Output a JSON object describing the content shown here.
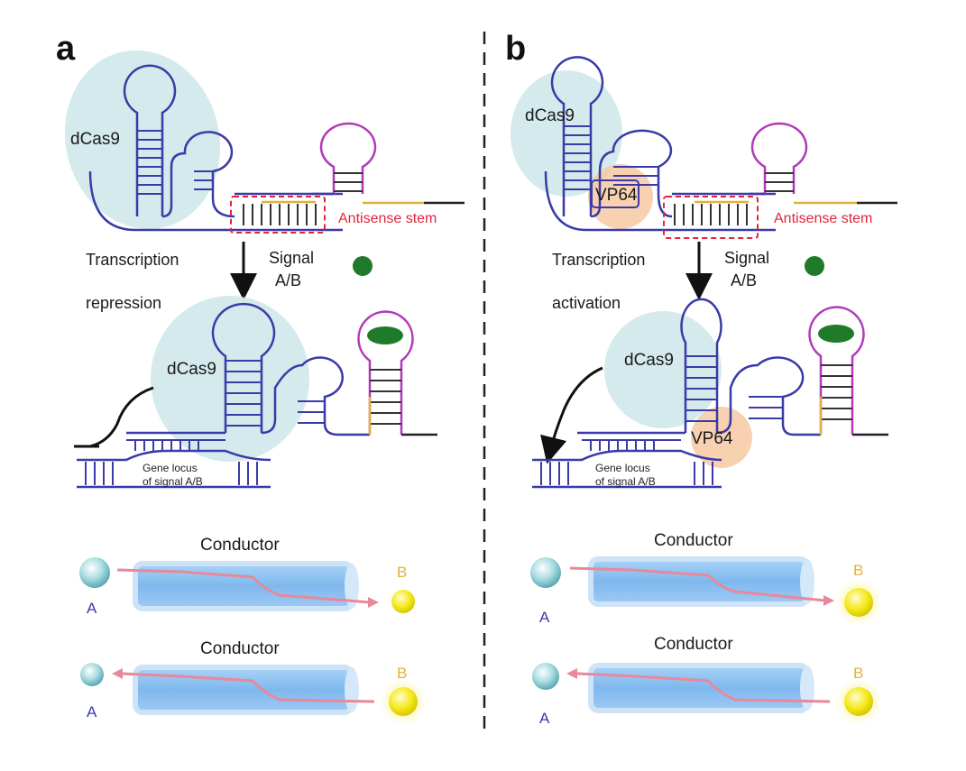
{
  "panels": {
    "a": {
      "letter": "a",
      "protein_top": "dCas9",
      "antisense": "Antisense stem",
      "mode_line1": "Transcription",
      "mode_line2": "repression",
      "signal_line1": "Signal",
      "signal_line2": "A/B",
      "protein_bottom": "dCas9",
      "gene_line1": "Gene locus",
      "gene_line2": "of signal A/B",
      "conductor1": "Conductor",
      "conductor2": "Conductor",
      "A1": "A",
      "B1": "B",
      "A2": "A",
      "B2": "B"
    },
    "b": {
      "letter": "b",
      "protein_top": "dCas9",
      "activator_top": "VP64",
      "antisense": "Antisense stem",
      "mode_line1": "Transcription",
      "mode_line2": "activation",
      "signal_line1": "Signal",
      "signal_line2": "A/B",
      "protein_bottom": "dCas9",
      "activator_bottom": "VP64",
      "gene_line1": "Gene locus",
      "gene_line2": "of signal A/B",
      "conductor1": "Conductor",
      "conductor2": "Conductor",
      "A1": "A",
      "B1": "B",
      "A2": "A",
      "B2": "B"
    }
  },
  "colors": {
    "rna_blue": "#3a3aa8",
    "aptamer_magenta": "#b03ab8",
    "antisense_red": "#e0263b",
    "dcas9_fill": "#cfe8ea",
    "vp64_fill": "#f6c9a2",
    "signal_green": "#1f7a2a",
    "conductor_fill": "#8fc3f2",
    "signal_path": "#e8889a",
    "node_A": "#9fd6dc",
    "node_B": "#f3ea2a"
  }
}
